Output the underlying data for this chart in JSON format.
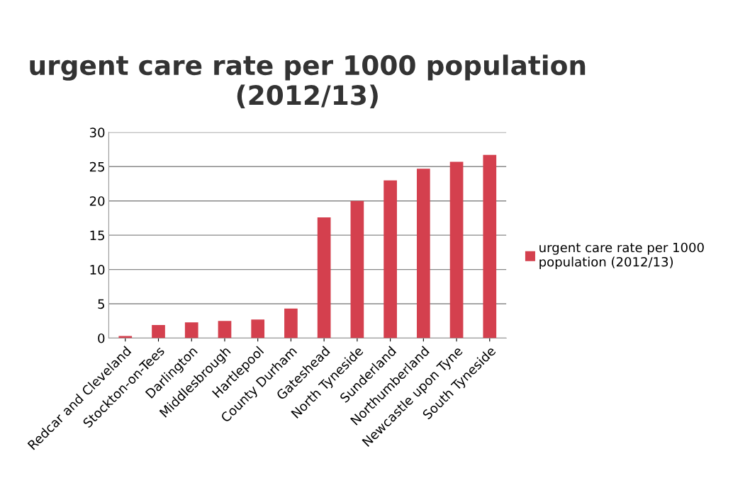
{
  "chart_data": {
    "type": "bar",
    "title": "urgent care rate per 1000 population\n(2012/13)",
    "categories": [
      "Redcar and Cleveland",
      "Stockton-on-Tees",
      "Darlington",
      "Middlesbrough",
      "Hartlepool",
      "County Durham",
      "Gateshead",
      "North Tyneside",
      "Sunderland",
      "Northumberland",
      "Newcastle upon Tyne",
      "South Tyneside"
    ],
    "series": [
      {
        "name": "urgent care rate per 1000 population (2012/13)",
        "color": "#d4404e",
        "values": [
          0.3,
          1.9,
          2.3,
          2.5,
          2.7,
          4.3,
          17.6,
          20.0,
          23.0,
          24.7,
          25.7,
          26.7
        ]
      }
    ],
    "ylim": [
      0,
      30
    ],
    "yticks": [
      0,
      5,
      10,
      15,
      20,
      25,
      30
    ],
    "grid": "y",
    "legend": "right"
  }
}
